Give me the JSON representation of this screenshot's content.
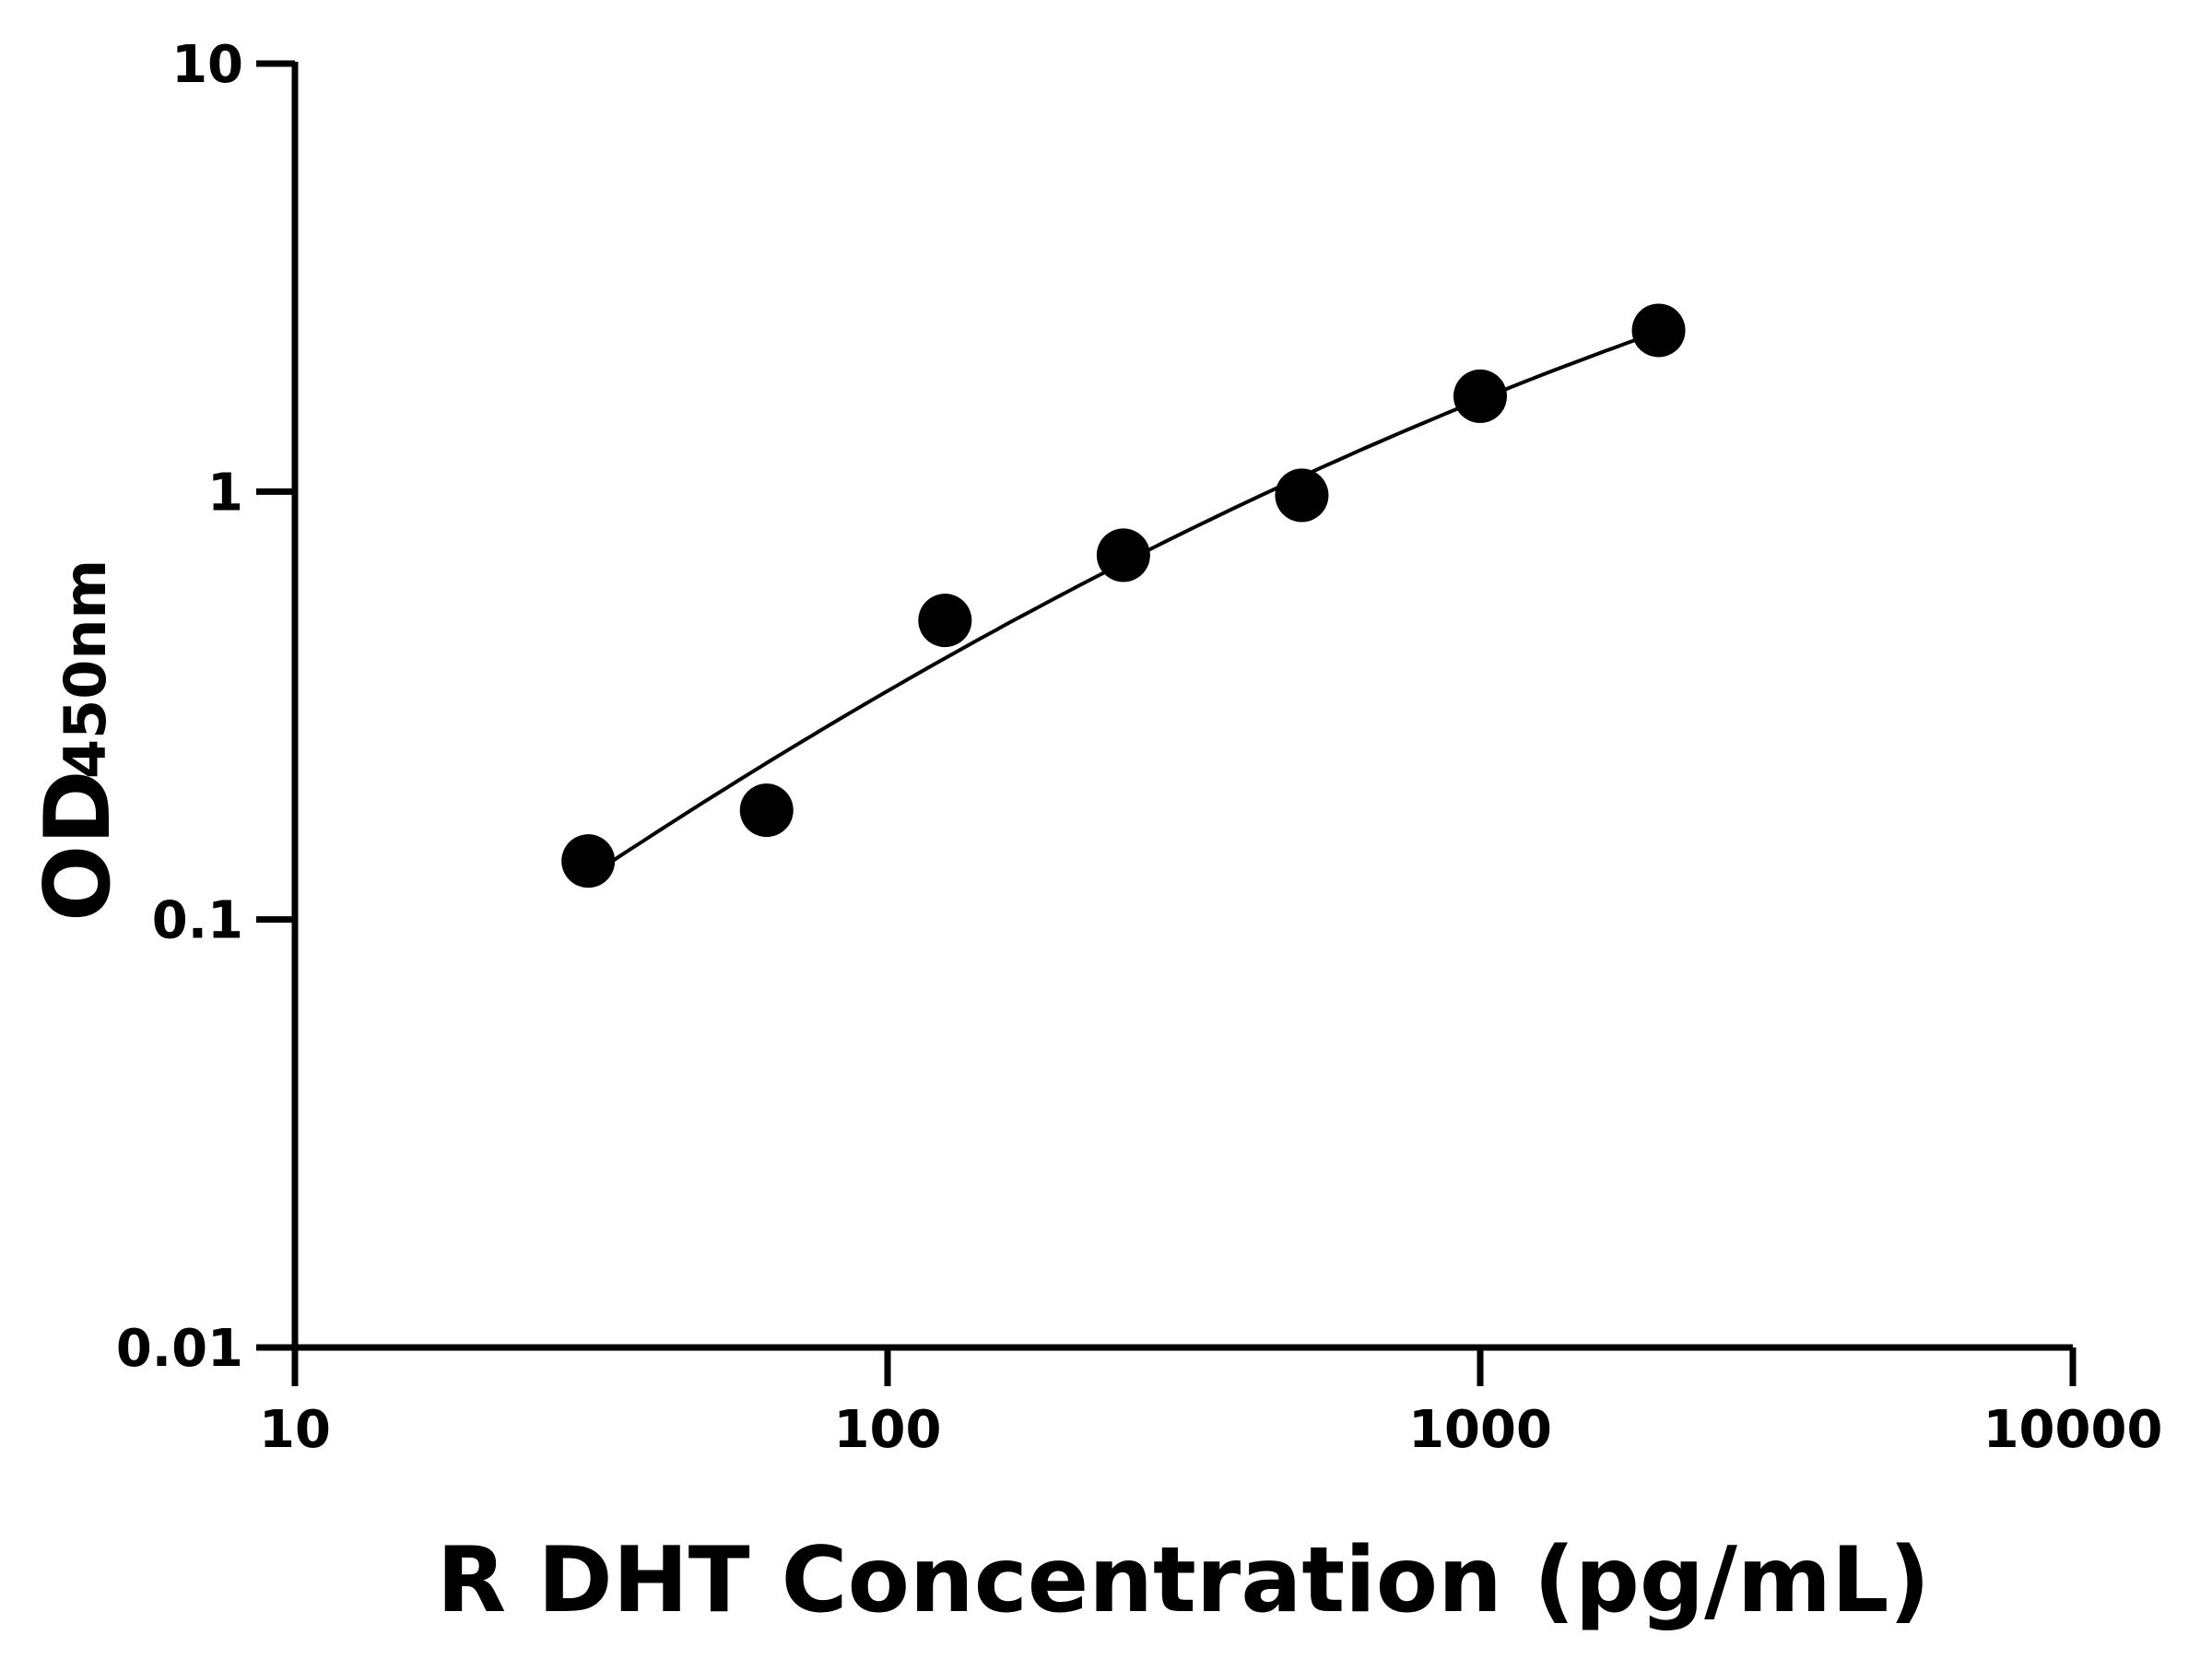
{
  "chart_data": {
    "type": "scatter",
    "title": "",
    "xlabel": "R DHT Concentration (pg/mL)",
    "ylabel_main": "OD",
    "ylabel_sub": "450nm",
    "xscale": "log",
    "yscale": "log",
    "xlim": [
      10,
      10000
    ],
    "ylim": [
      0.01,
      10
    ],
    "xticks": [
      "10",
      "100",
      "1000",
      "10000"
    ],
    "yticks": [
      "0.01",
      "0.1",
      "1",
      "10"
    ],
    "grid": false,
    "legend": "none",
    "fit_curve": true,
    "series": [
      {
        "x": [
          31.25,
          62.5,
          125,
          250,
          500,
          1000,
          2000
        ],
        "y": [
          0.137,
          0.18,
          0.5,
          0.71,
          0.98,
          1.67,
          2.38
        ]
      }
    ],
    "color": "#000000"
  }
}
